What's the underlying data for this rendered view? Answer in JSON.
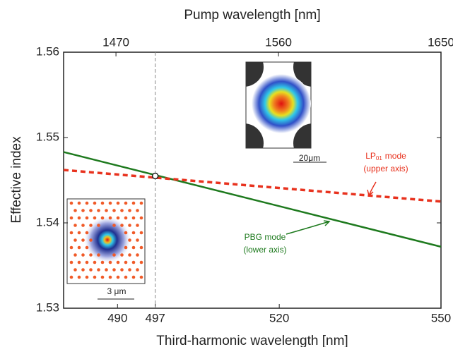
{
  "chart_data": {
    "type": "line",
    "xlabel": "Third-harmonic wavelength [nm]",
    "x2label": "Pump wavelength [nm]",
    "ylabel": "Effective index",
    "xlim": [
      480,
      550
    ],
    "xticks": [
      490,
      497,
      520,
      550
    ],
    "x2lim": [
      1441,
      1650
    ],
    "x2ticks": [
      1470,
      1560,
      1650
    ],
    "ylim": [
      1.53,
      1.56
    ],
    "yticks": [
      1.53,
      1.54,
      1.55,
      1.56
    ],
    "series": [
      {
        "name": "PBG mode",
        "note": "(lower axis)",
        "color": "#1e7a1e",
        "dash": false,
        "x": [
          480,
          550
        ],
        "values": [
          1.5483,
          1.5372
        ]
      },
      {
        "name": "LP",
        "sub": "01",
        "suffix": "mode",
        "note": "(upper axis)",
        "color": "#e8321e",
        "dash": true,
        "axis": "x2",
        "x": [
          1441,
          1650
        ],
        "values": [
          1.5462,
          1.5425
        ]
      }
    ],
    "marker": {
      "x": 497,
      "y": 1.5455
    },
    "inset_scales": [
      "20μm",
      "3 μm"
    ]
  }
}
